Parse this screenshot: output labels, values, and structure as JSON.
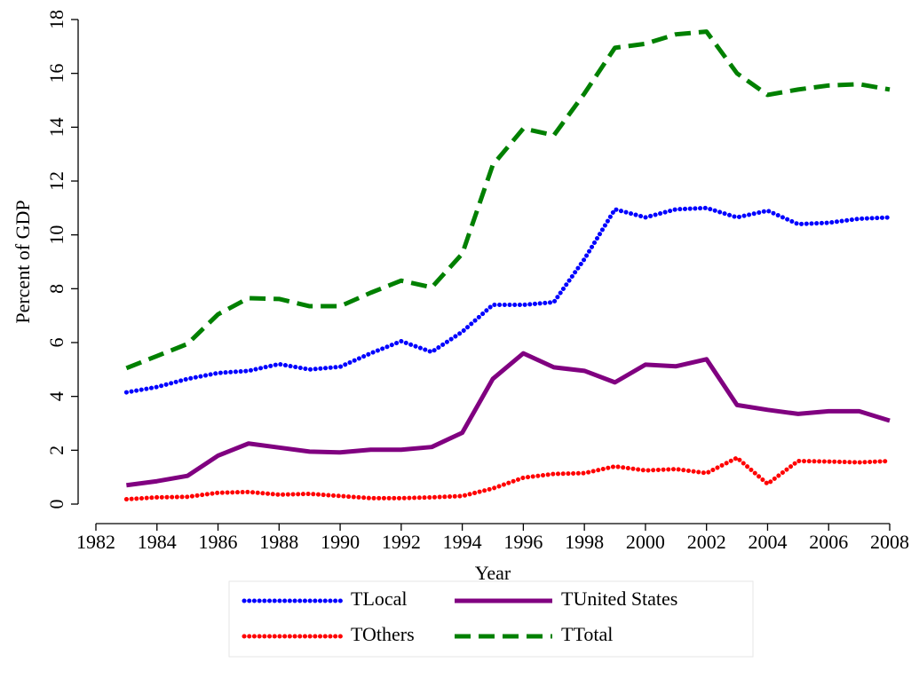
{
  "chart_data": {
    "type": "line",
    "x_label": "Year",
    "y_label": "Percent of GDP",
    "x": [
      1983,
      1984,
      1985,
      1986,
      1987,
      1988,
      1989,
      1990,
      1991,
      1992,
      1993,
      1994,
      1995,
      1996,
      1997,
      1998,
      1999,
      2000,
      2001,
      2002,
      2003,
      2004,
      2005,
      2006,
      2007,
      2008
    ],
    "series": [
      {
        "name": "TLocal",
        "color": "#0000ff",
        "style": "dotted",
        "values": [
          4.15,
          4.35,
          4.65,
          4.87,
          4.95,
          5.2,
          5.0,
          5.1,
          5.6,
          6.05,
          5.65,
          6.4,
          7.4,
          7.4,
          7.5,
          9.1,
          10.95,
          10.65,
          10.95,
          11.0,
          10.65,
          10.9,
          10.4,
          10.45,
          10.6,
          10.65
        ]
      },
      {
        "name": "TUnited States",
        "color": "#800080",
        "style": "solid",
        "values": [
          0.7,
          0.85,
          1.05,
          1.8,
          2.25,
          2.1,
          1.95,
          1.92,
          2.02,
          2.02,
          2.12,
          2.65,
          4.65,
          5.6,
          5.08,
          4.95,
          4.52,
          5.18,
          5.12,
          5.38,
          3.68,
          3.5,
          3.35,
          3.45,
          3.45,
          3.1
        ]
      },
      {
        "name": "TOthers",
        "color": "#ff0000",
        "style": "dotted",
        "values": [
          0.18,
          0.25,
          0.27,
          0.42,
          0.45,
          0.35,
          0.38,
          0.3,
          0.22,
          0.22,
          0.25,
          0.3,
          0.58,
          0.98,
          1.12,
          1.15,
          1.4,
          1.25,
          1.3,
          1.15,
          1.72,
          0.75,
          1.6,
          1.58,
          1.55,
          1.6
        ]
      },
      {
        "name": "TTotal",
        "color": "#008000",
        "style": "dashed",
        "values": [
          5.05,
          5.5,
          5.95,
          7.05,
          7.65,
          7.62,
          7.35,
          7.35,
          7.85,
          8.3,
          8.05,
          9.3,
          12.6,
          13.95,
          13.7,
          15.25,
          16.95,
          17.1,
          17.45,
          17.55,
          16.0,
          15.2,
          15.4,
          15.55,
          15.6,
          15.4
        ]
      }
    ],
    "xlim": [
      1982,
      2008
    ],
    "xticks": [
      1982,
      1984,
      1986,
      1988,
      1990,
      1992,
      1994,
      1996,
      1998,
      2000,
      2002,
      2004,
      2006,
      2008
    ],
    "ylim": [
      0,
      18
    ],
    "yticks": [
      0,
      2,
      4,
      6,
      8,
      10,
      12,
      14,
      16,
      18
    ],
    "grid": false,
    "legend": "bottom"
  }
}
